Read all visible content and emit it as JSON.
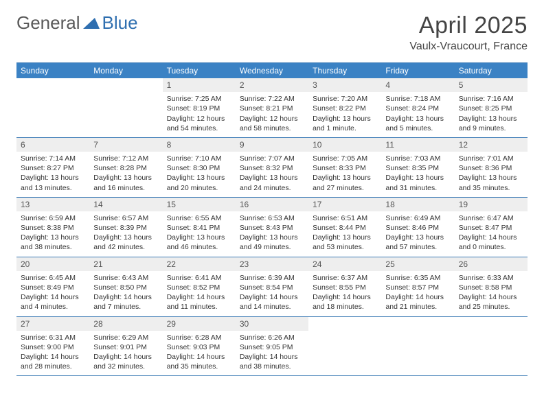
{
  "brand": {
    "part1": "General",
    "part2": "Blue"
  },
  "title": "April 2025",
  "location": "Vaulx-Vraucourt, France",
  "colors": {
    "headerBg": "#3b82c4",
    "headerBorder": "#3b7ab5",
    "dayNumBg": "#eeeeee",
    "logoBlue": "#2f6fb0"
  },
  "weekdays": [
    "Sunday",
    "Monday",
    "Tuesday",
    "Wednesday",
    "Thursday",
    "Friday",
    "Saturday"
  ],
  "weeks": [
    [
      null,
      null,
      {
        "n": "1",
        "sr": "7:25 AM",
        "ss": "8:19 PM",
        "dl": "12 hours and 54 minutes."
      },
      {
        "n": "2",
        "sr": "7:22 AM",
        "ss": "8:21 PM",
        "dl": "12 hours and 58 minutes."
      },
      {
        "n": "3",
        "sr": "7:20 AM",
        "ss": "8:22 PM",
        "dl": "13 hours and 1 minute."
      },
      {
        "n": "4",
        "sr": "7:18 AM",
        "ss": "8:24 PM",
        "dl": "13 hours and 5 minutes."
      },
      {
        "n": "5",
        "sr": "7:16 AM",
        "ss": "8:25 PM",
        "dl": "13 hours and 9 minutes."
      }
    ],
    [
      {
        "n": "6",
        "sr": "7:14 AM",
        "ss": "8:27 PM",
        "dl": "13 hours and 13 minutes."
      },
      {
        "n": "7",
        "sr": "7:12 AM",
        "ss": "8:28 PM",
        "dl": "13 hours and 16 minutes."
      },
      {
        "n": "8",
        "sr": "7:10 AM",
        "ss": "8:30 PM",
        "dl": "13 hours and 20 minutes."
      },
      {
        "n": "9",
        "sr": "7:07 AM",
        "ss": "8:32 PM",
        "dl": "13 hours and 24 minutes."
      },
      {
        "n": "10",
        "sr": "7:05 AM",
        "ss": "8:33 PM",
        "dl": "13 hours and 27 minutes."
      },
      {
        "n": "11",
        "sr": "7:03 AM",
        "ss": "8:35 PM",
        "dl": "13 hours and 31 minutes."
      },
      {
        "n": "12",
        "sr": "7:01 AM",
        "ss": "8:36 PM",
        "dl": "13 hours and 35 minutes."
      }
    ],
    [
      {
        "n": "13",
        "sr": "6:59 AM",
        "ss": "8:38 PM",
        "dl": "13 hours and 38 minutes."
      },
      {
        "n": "14",
        "sr": "6:57 AM",
        "ss": "8:39 PM",
        "dl": "13 hours and 42 minutes."
      },
      {
        "n": "15",
        "sr": "6:55 AM",
        "ss": "8:41 PM",
        "dl": "13 hours and 46 minutes."
      },
      {
        "n": "16",
        "sr": "6:53 AM",
        "ss": "8:43 PM",
        "dl": "13 hours and 49 minutes."
      },
      {
        "n": "17",
        "sr": "6:51 AM",
        "ss": "8:44 PM",
        "dl": "13 hours and 53 minutes."
      },
      {
        "n": "18",
        "sr": "6:49 AM",
        "ss": "8:46 PM",
        "dl": "13 hours and 57 minutes."
      },
      {
        "n": "19",
        "sr": "6:47 AM",
        "ss": "8:47 PM",
        "dl": "14 hours and 0 minutes."
      }
    ],
    [
      {
        "n": "20",
        "sr": "6:45 AM",
        "ss": "8:49 PM",
        "dl": "14 hours and 4 minutes."
      },
      {
        "n": "21",
        "sr": "6:43 AM",
        "ss": "8:50 PM",
        "dl": "14 hours and 7 minutes."
      },
      {
        "n": "22",
        "sr": "6:41 AM",
        "ss": "8:52 PM",
        "dl": "14 hours and 11 minutes."
      },
      {
        "n": "23",
        "sr": "6:39 AM",
        "ss": "8:54 PM",
        "dl": "14 hours and 14 minutes."
      },
      {
        "n": "24",
        "sr": "6:37 AM",
        "ss": "8:55 PM",
        "dl": "14 hours and 18 minutes."
      },
      {
        "n": "25",
        "sr": "6:35 AM",
        "ss": "8:57 PM",
        "dl": "14 hours and 21 minutes."
      },
      {
        "n": "26",
        "sr": "6:33 AM",
        "ss": "8:58 PM",
        "dl": "14 hours and 25 minutes."
      }
    ],
    [
      {
        "n": "27",
        "sr": "6:31 AM",
        "ss": "9:00 PM",
        "dl": "14 hours and 28 minutes."
      },
      {
        "n": "28",
        "sr": "6:29 AM",
        "ss": "9:01 PM",
        "dl": "14 hours and 32 minutes."
      },
      {
        "n": "29",
        "sr": "6:28 AM",
        "ss": "9:03 PM",
        "dl": "14 hours and 35 minutes."
      },
      {
        "n": "30",
        "sr": "6:26 AM",
        "ss": "9:05 PM",
        "dl": "14 hours and 38 minutes."
      },
      null,
      null,
      null
    ]
  ],
  "labels": {
    "sunrise": "Sunrise:",
    "sunset": "Sunset:",
    "daylight": "Daylight:"
  }
}
